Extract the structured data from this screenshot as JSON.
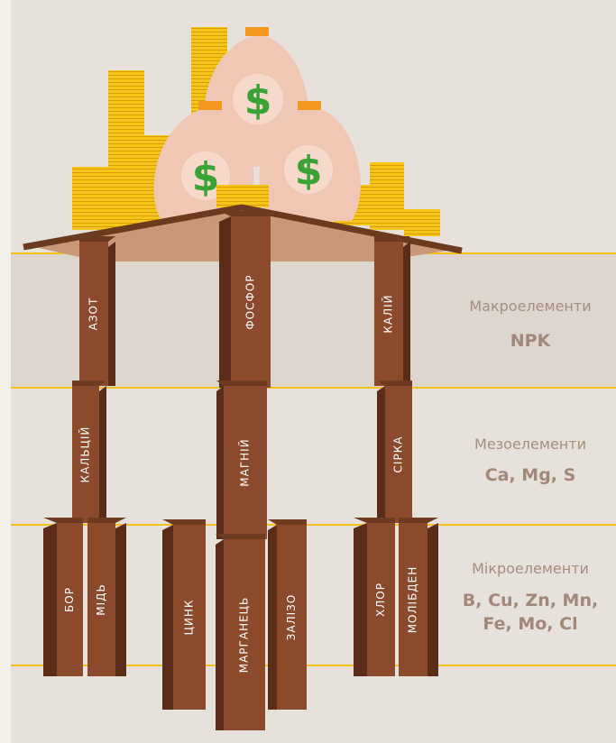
{
  "pillars": [
    "АЗОТ",
    "ФОСФОР",
    "КАЛІЙ",
    "КАЛЬЦІЙ",
    "МАГНІЙ",
    "СІРКА",
    "БОР",
    "МІДЬ",
    "ЦИНК",
    "МАРГАНЕЦЬ",
    "ЗАЛІЗО",
    "ХЛОР",
    "МОЛІБДЕН"
  ],
  "levels": [
    {
      "name": "Макроелементи",
      "elements": [
        "NPK"
      ]
    },
    {
      "name": "Мезоелементи",
      "elements": [
        "Ca, Mg, S"
      ]
    },
    {
      "name": "Мікроелементи",
      "elements": [
        "B, Cu, Zn, Mn,",
        "Fe, Mo, Cl"
      ]
    }
  ]
}
